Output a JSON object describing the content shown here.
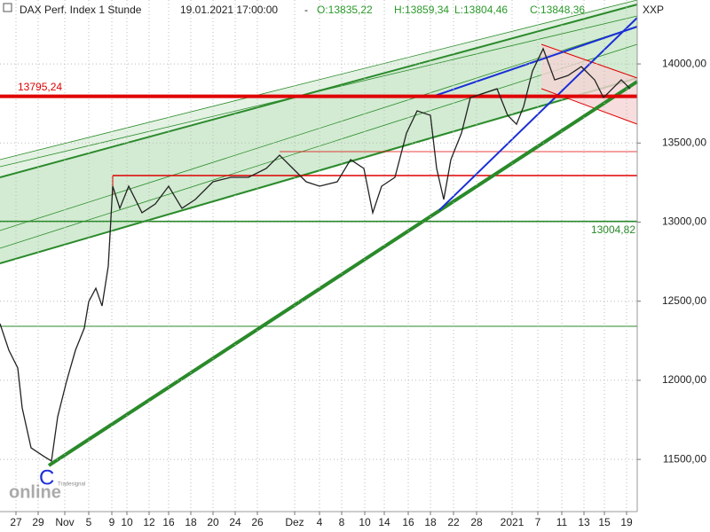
{
  "chart_data": {
    "type": "line",
    "title": "DAX Perf. Index 1 Stunde",
    "timestamp": "19.01.2021 17:00:00",
    "ohlc": [
      "O:13835,22",
      "H:13859,34",
      "L:13804,46",
      "C:13848,36"
    ],
    "symbol": "XXP",
    "marker": "C",
    "logo": "online",
    "logo_small": "Tradesignal",
    "xlim": [
      0,
      718
    ],
    "xticks": [
      {
        "value": 18,
        "label": "27"
      },
      {
        "value": 43,
        "label": "29"
      },
      {
        "value": 73,
        "label": "Nov"
      },
      {
        "value": 100,
        "label": "5"
      },
      {
        "value": 126,
        "label": "9"
      },
      {
        "value": 143,
        "label": "10"
      },
      {
        "value": 168,
        "label": "12"
      },
      {
        "value": 190,
        "label": "16"
      },
      {
        "value": 215,
        "label": "18"
      },
      {
        "value": 240,
        "label": "20"
      },
      {
        "value": 265,
        "label": "24"
      },
      {
        "value": 290,
        "label": "26"
      },
      {
        "value": 332,
        "label": "Dez"
      },
      {
        "value": 360,
        "label": "4"
      },
      {
        "value": 385,
        "label": "8"
      },
      {
        "value": 411,
        "label": "10"
      },
      {
        "value": 433,
        "label": "14"
      },
      {
        "value": 460,
        "label": "16"
      },
      {
        "value": 485,
        "label": "18"
      },
      {
        "value": 511,
        "label": "22"
      },
      {
        "value": 537,
        "label": "28"
      },
      {
        "value": 577,
        "label": "2021"
      },
      {
        "value": 606,
        "label": "7"
      },
      {
        "value": 633,
        "label": "11"
      },
      {
        "value": 658,
        "label": "13"
      },
      {
        "value": 681,
        "label": "15"
      },
      {
        "value": 706,
        "label": "19"
      }
    ],
    "ylim": [
      11170,
      14404
    ],
    "yticks": [
      {
        "value": 11500,
        "label": "11500,00"
      },
      {
        "value": 12000,
        "label": "12000,00"
      },
      {
        "value": 12500,
        "label": "12500,00"
      },
      {
        "value": 13000,
        "label": "13000,00"
      },
      {
        "value": 13500,
        "label": "13500,00"
      },
      {
        "value": 14000,
        "label": "14000,00"
      }
    ],
    "grid": true,
    "series": [
      {
        "name": "DAX",
        "color": "#222222",
        "x": [
          0,
          10,
          20,
          25,
          35,
          50,
          58,
          65,
          75,
          85,
          95,
          100,
          108,
          115,
          122,
          127,
          135,
          145,
          160,
          175,
          190,
          205,
          220,
          240,
          260,
          280,
          300,
          315,
          330,
          345,
          360,
          380,
          395,
          410,
          420,
          430,
          445,
          458,
          470,
          485,
          492,
          500,
          508,
          520,
          530,
          545,
          560,
          572,
          582,
          590,
          600,
          612,
          625,
          640,
          655,
          670,
          680,
          690,
          700,
          710
        ],
        "values": [
          12358,
          12190,
          12078,
          11826,
          11573,
          11517,
          11490,
          11770,
          11994,
          12190,
          12330,
          12498,
          12582,
          12470,
          12722,
          13227,
          13087,
          13227,
          13059,
          13115,
          13227,
          13087,
          13143,
          13255,
          13283,
          13283,
          13339,
          13423,
          13339,
          13255,
          13227,
          13255,
          13395,
          13339,
          13059,
          13227,
          13283,
          13563,
          13703,
          13675,
          13339,
          13143,
          13395,
          13563,
          13787,
          13815,
          13843,
          13675,
          13619,
          13731,
          13955,
          14096,
          13899,
          13927,
          13983,
          13899,
          13787,
          13843,
          13899,
          13843
        ]
      }
    ],
    "levels": [
      {
        "value": 13795.24,
        "label": "13795,24",
        "color": "#e00000"
      },
      {
        "value": 13004.82,
        "label": "13004,82",
        "color": "#2a8a2a"
      }
    ]
  }
}
